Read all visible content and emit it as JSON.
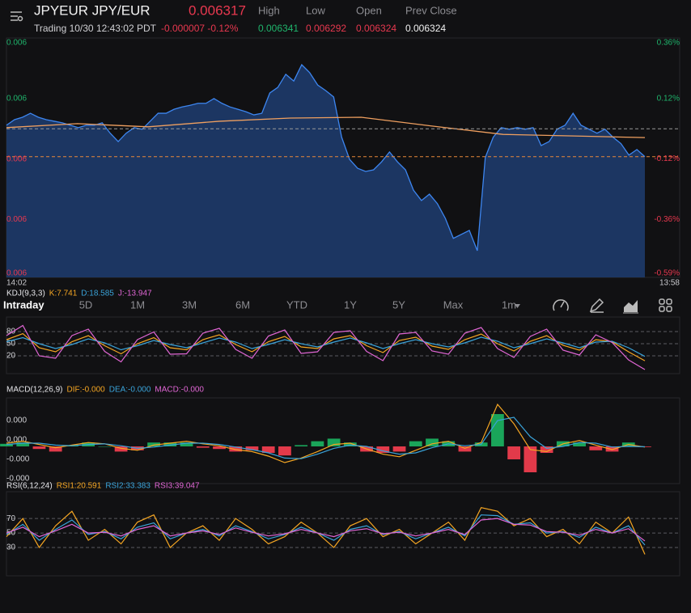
{
  "header": {
    "symbol": "JPYEUR JPY/EUR",
    "price": "0.006317",
    "status": "Trading 10/30 12:43:02 PDT",
    "change": "-0.000007 -0.12%",
    "stats": [
      {
        "label": "High",
        "value": "0.006341"
      },
      {
        "label": "Low",
        "value": "0.006292"
      },
      {
        "label": "Open",
        "value": "0.006324"
      },
      {
        "label": "Prev Close",
        "value": "0.006324"
      }
    ]
  },
  "tabs": [
    "Intraday",
    "5D",
    "1M",
    "3M",
    "6M",
    "YTD",
    "1Y",
    "5Y",
    "Max",
    "1m"
  ],
  "chart_data": [
    {
      "type": "area",
      "x_labels": [
        "14:02",
        "13:58"
      ],
      "ylim": [
        0.0062867,
        0.0063468
      ],
      "yticks": [
        {
          "value": 0.0063468,
          "label": "0.006"
        },
        {
          "value": 0.0063316,
          "label": "0.006"
        },
        {
          "value": 0.0063164,
          "label": "0.006"
        },
        {
          "value": 0.0063012,
          "label": "0.006"
        },
        {
          "value": 0.0062867,
          "label": "0.006"
        }
      ],
      "y2lim": [
        -0.59,
        0.36
      ],
      "y2ticks": [
        {
          "value": 0.36,
          "label": "0.36%"
        },
        {
          "value": 0.12,
          "label": "0.12%"
        },
        {
          "value": -0.12,
          "label": "-0.12%"
        },
        {
          "value": -0.36,
          "label": "-0.36%"
        },
        {
          "value": -0.59,
          "label": "-0.59%"
        }
      ],
      "up_color": "#1fb56c",
      "down_color": "#e8384f",
      "ref_lines": [
        {
          "value": 0.006324,
          "color": "#9a9a9a"
        },
        {
          "value": 0.006317,
          "color": "#e8883a"
        }
      ],
      "series": [
        {
          "color": "#3d86f0",
          "fill": "#1e3b6c",
          "values": [
            0.0063249,
            0.0063263,
            0.0063269,
            0.0063279,
            0.0063269,
            0.0063263,
            0.0063259,
            0.0063255,
            0.0063249,
            0.0063243,
            0.0063249,
            0.0063249,
            0.0063255,
            0.0063229,
            0.0063208,
            0.0063229,
            0.0063243,
            0.0063239,
            0.0063259,
            0.0063279,
            0.0063279,
            0.0063289,
            0.0063295,
            0.0063299,
            0.0063304,
            0.0063304,
            0.0063316,
            0.0063304,
            0.0063295,
            0.0063289,
            0.0063283,
            0.0063275,
            0.0063279,
            0.006333,
            0.0063344,
            0.0063377,
            0.006336,
            0.0063401,
            0.0063381,
            0.006335,
            0.0063336,
            0.006332,
            0.0063219,
            0.0063163,
            0.0063141,
            0.0063133,
            0.0063137,
            0.0063157,
            0.0063182,
            0.0063157,
            0.0063137,
            0.0063086,
            0.006306,
            0.0063076,
            0.0063052,
            0.0063015,
            0.0062965,
            0.0062975,
            0.0062985,
            0.0062934,
            0.0063168,
            0.0063219,
            0.0063243,
            0.0063239,
            0.0063243,
            0.0063239,
            0.0063243,
            0.0063198,
            0.0063208,
            0.0063239,
            0.0063249,
            0.0063279,
            0.0063249,
            0.0063239,
            0.0063229,
            0.0063239,
            0.0063219,
            0.0063203,
            0.0063174,
            0.0063188,
            0.006317
          ]
        },
        {
          "color": "#f0a060",
          "values": [
            0.0063243,
            0.0063253,
            0.0063245,
            0.0063259,
            0.0063267,
            0.0063269,
            0.0063247,
            0.0063226,
            0.0063222,
            0.0063218
          ]
        }
      ]
    },
    {
      "type": "line",
      "title": "KDJ(9,3,3)",
      "ylim": [
        -24,
        116
      ],
      "yticks": [
        80,
        50,
        20
      ],
      "grid": true,
      "series": [
        {
          "name": "K:7.741",
          "color": "#f5a623",
          "values": [
            60,
            75,
            40,
            30,
            55,
            70,
            45,
            25,
            50,
            65,
            40,
            35,
            60,
            72,
            48,
            30,
            55,
            68,
            42,
            38,
            62,
            70,
            45,
            28,
            58,
            66,
            44,
            36,
            60,
            74,
            50,
            32,
            56,
            70,
            46,
            34,
            60,
            55,
            30,
            7.741
          ]
        },
        {
          "name": "D:18.585",
          "color": "#3aa3d9",
          "values": [
            55,
            65,
            50,
            38,
            48,
            62,
            52,
            35,
            45,
            58,
            48,
            40,
            52,
            64,
            54,
            38,
            48,
            60,
            50,
            42,
            54,
            64,
            52,
            38,
            50,
            60,
            50,
            42,
            52,
            66,
            56,
            40,
            50,
            62,
            52,
            40,
            54,
            56,
            40,
            18.585
          ]
        },
        {
          "name": "J:-13.947",
          "color": "#e066d4",
          "values": [
            70,
            95,
            20,
            14,
            70,
            86,
            31,
            5,
            60,
            79,
            24,
            25,
            76,
            88,
            36,
            14,
            69,
            84,
            26,
            30,
            78,
            82,
            31,
            8,
            74,
            78,
            32,
            24,
            76,
            90,
            38,
            16,
            68,
            86,
            34,
            22,
            72,
            53,
            10,
            -13.947
          ]
        }
      ]
    },
    {
      "type": "line",
      "title": "MACD(12,26,9)",
      "ylim": [
        -5.75e-06,
        7.5e-06
      ],
      "grid": false,
      "yticks": [
        {
          "value": 4e-06,
          "label": "0.000"
        },
        {
          "value": 1e-06,
          "label": "0.000"
        },
        {
          "value": -2e-06,
          "label": "-0.000"
        },
        {
          "value": -5e-06,
          "label": "-0.000"
        }
      ],
      "up_color": "#1aa55a",
      "down_color": "#e23a4a",
      "series": [
        {
          "name": "DIF:-0.000",
          "color": "#f5a623",
          "values": [
            5e-07,
            8e-07,
            3e-07,
            -2e-07,
            2e-07,
            6e-07,
            4e-07,
            -3e-07,
            -6e-07,
            2e-07,
            5e-07,
            8e-07,
            4e-07,
            1e-07,
            -5e-07,
            -8e-07,
            -1.5e-06,
            -2.5e-06,
            -1.8e-06,
            -8e-07,
            3e-07,
            5e-07,
            -4e-07,
            -1.2e-06,
            -1.6e-06,
            -6e-07,
            4e-07,
            8e-07,
            -3e-07,
            6e-07,
            6.5e-06,
            3.5e-06,
            -5e-07,
            -8e-07,
            4e-07,
            9e-07,
            2e-07,
            -5e-07,
            3e-07,
            -1e-07
          ]
        },
        {
          "name": "DEA:-0.000",
          "color": "#3aa3d9",
          "values": [
            3e-07,
            5e-07,
            5e-07,
            2e-07,
            1e-07,
            3e-07,
            4e-07,
            1e-07,
            -3e-07,
            -1e-07,
            2e-07,
            5e-07,
            5e-07,
            3e-07,
            -1e-07,
            -5e-07,
            -1e-06,
            -1.8e-06,
            -1.9e-06,
            -1.2e-06,
            -3e-07,
            2e-07,
            0,
            -7e-07,
            -1.2e-06,
            -1e-06,
            -2e-07,
            4e-07,
            1e-07,
            3e-07,
            4e-06,
            4.5e-06,
            1.5e-06,
            -3e-07,
            0,
            6e-07,
            5e-07,
            -1e-07,
            0,
            -5e-08
          ]
        },
        {
          "name": "MACD:-0.000",
          "color": "#e066d4",
          "type": "bar",
          "values": [
            4e-07,
            6e-07,
            -4e-07,
            -8e-07,
            2e-07,
            6e-07,
            0,
            -8e-07,
            -6e-07,
            6e-07,
            6e-07,
            6e-07,
            -2e-07,
            -4e-07,
            -8e-07,
            -6e-07,
            -1e-06,
            -1.4e-06,
            2e-07,
            8e-07,
            1.2e-06,
            6e-07,
            -8e-07,
            -1e-06,
            -8e-07,
            8e-07,
            1.2e-06,
            8e-07,
            -8e-07,
            6e-07,
            5e-06,
            -2e-06,
            -4e-06,
            -1e-06,
            8e-07,
            6e-07,
            -6e-07,
            -8e-07,
            6e-07,
            -1e-07
          ]
        }
      ]
    },
    {
      "type": "line",
      "title": "RSI(6,12,24)",
      "ylim": [
        -9,
        107
      ],
      "yticks": [
        70,
        50,
        30
      ],
      "grid": true,
      "series": [
        {
          "name": "RSI1:20.591",
          "color": "#f5a623",
          "values": [
            45,
            70,
            30,
            60,
            80,
            40,
            55,
            35,
            65,
            75,
            30,
            50,
            60,
            40,
            70,
            55,
            35,
            45,
            65,
            50,
            30,
            60,
            70,
            45,
            55,
            35,
            50,
            65,
            40,
            85,
            80,
            60,
            70,
            45,
            55,
            35,
            65,
            50,
            72,
            20.591
          ]
        },
        {
          "name": "RSI2:33.383",
          "color": "#3aa3d9",
          "values": [
            48,
            62,
            40,
            55,
            68,
            48,
            52,
            42,
            58,
            64,
            42,
            50,
            55,
            46,
            60,
            52,
            42,
            48,
            58,
            50,
            40,
            55,
            60,
            48,
            52,
            42,
            50,
            58,
            46,
            75,
            74,
            62,
            64,
            50,
            52,
            44,
            58,
            50,
            60,
            33.383
          ]
        },
        {
          "name": "RSI3:39.047",
          "color": "#e066d4",
          "values": [
            50,
            58,
            45,
            53,
            62,
            50,
            51,
            46,
            55,
            60,
            46,
            50,
            53,
            48,
            57,
            51,
            46,
            49,
            55,
            50,
            45,
            53,
            56,
            49,
            51,
            46,
            50,
            55,
            48,
            68,
            70,
            62,
            61,
            52,
            51,
            47,
            55,
            50,
            56,
            39.047
          ]
        }
      ]
    }
  ]
}
